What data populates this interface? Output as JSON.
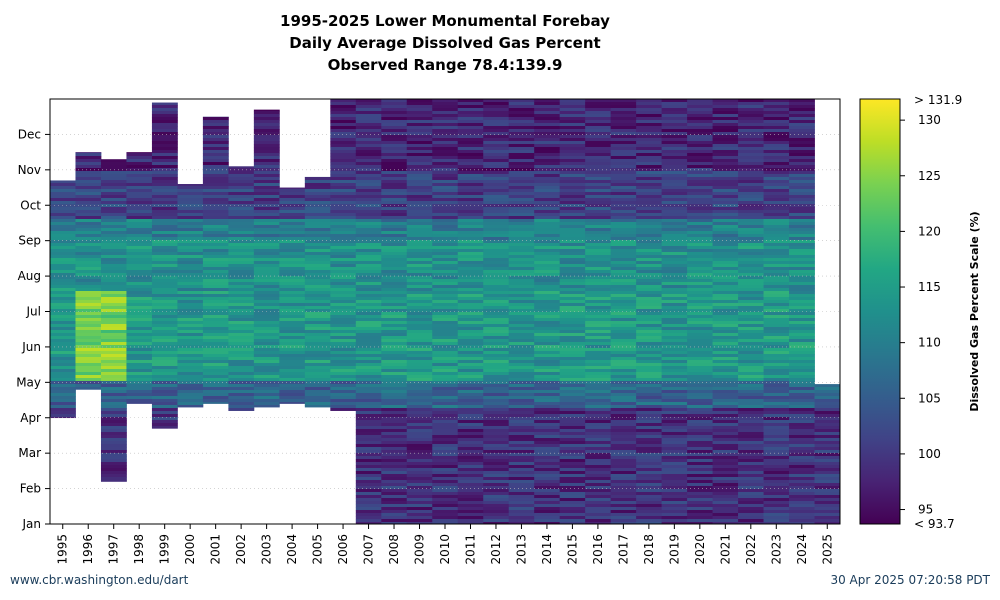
{
  "chart_data": {
    "type": "heatmap",
    "title_lines": [
      "1995-2025 Lower Monumental Forebay",
      "Daily Average Dissolved Gas Percent",
      "Observed Range 78.4:139.9"
    ],
    "x_tick_labels": [
      "1995",
      "1996",
      "1997",
      "1998",
      "1999",
      "2000",
      "2001",
      "2002",
      "2003",
      "2004",
      "2005",
      "2006",
      "2007",
      "2008",
      "2009",
      "2010",
      "2011",
      "2012",
      "2013",
      "2014",
      "2015",
      "2016",
      "2017",
      "2018",
      "2019",
      "2020",
      "2021",
      "2022",
      "2023",
      "2024",
      "2025"
    ],
    "y_tick_labels": [
      "Jan",
      "Feb",
      "Mar",
      "Apr",
      "May",
      "Jun",
      "Jul",
      "Aug",
      "Sep",
      "Oct",
      "Nov",
      "Dec"
    ],
    "colorbar": {
      "label": "Dissolved Gas Percent Scale (%)",
      "min": 93.7,
      "max": 131.9,
      "ticks": [
        95,
        100,
        105,
        110,
        115,
        120,
        125,
        130
      ],
      "tick_labels": [
        "95",
        "100",
        "105",
        "110",
        "115",
        "120",
        "125",
        "130"
      ],
      "min_label": "< 93.7",
      "max_label": "> 131.9",
      "colormap": "viridis"
    },
    "coverage_months": [
      {
        "year": "1995",
        "start": 3.0,
        "end": 9.7
      },
      {
        "year": "1996",
        "start": 3.8,
        "end": 10.5
      },
      {
        "year": "1997",
        "start": 1.2,
        "end": 10.3
      },
      {
        "year": "1998",
        "start": 3.4,
        "end": 10.5
      },
      {
        "year": "1999",
        "start": 2.7,
        "end": 11.9
      },
      {
        "year": "2000",
        "start": 3.3,
        "end": 9.6
      },
      {
        "year": "2001",
        "start": 3.4,
        "end": 11.5
      },
      {
        "year": "2002",
        "start": 3.2,
        "end": 10.1
      },
      {
        "year": "2003",
        "start": 3.3,
        "end": 11.7
      },
      {
        "year": "2004",
        "start": 3.4,
        "end": 9.5
      },
      {
        "year": "2005",
        "start": 3.3,
        "end": 9.8
      },
      {
        "year": "2006",
        "start": 3.2,
        "end": 12.0
      },
      {
        "year": "2007",
        "start": 0.0,
        "end": 12.0
      },
      {
        "year": "2008",
        "start": 0.0,
        "end": 12.0
      },
      {
        "year": "2009",
        "start": 0.0,
        "end": 12.0
      },
      {
        "year": "2010",
        "start": 0.0,
        "end": 12.0
      },
      {
        "year": "2011",
        "start": 0.0,
        "end": 12.0
      },
      {
        "year": "2012",
        "start": 0.0,
        "end": 12.0
      },
      {
        "year": "2013",
        "start": 0.0,
        "end": 12.0
      },
      {
        "year": "2014",
        "start": 0.0,
        "end": 12.0
      },
      {
        "year": "2015",
        "start": 0.0,
        "end": 12.0
      },
      {
        "year": "2016",
        "start": 0.0,
        "end": 12.0
      },
      {
        "year": "2017",
        "start": 0.0,
        "end": 12.0
      },
      {
        "year": "2018",
        "start": 0.0,
        "end": 12.0
      },
      {
        "year": "2019",
        "start": 0.0,
        "end": 12.0
      },
      {
        "year": "2020",
        "start": 0.0,
        "end": 12.0
      },
      {
        "year": "2021",
        "start": 0.0,
        "end": 12.0
      },
      {
        "year": "2022",
        "start": 0.0,
        "end": 12.0
      },
      {
        "year": "2023",
        "start": 0.0,
        "end": 12.0
      },
      {
        "year": "2024",
        "start": 0.0,
        "end": 12.0
      },
      {
        "year": "2025",
        "start": 0.0,
        "end": 3.95
      }
    ],
    "grid": true
  },
  "footer": {
    "left": "www.cbr.washington.edu/dart",
    "right": "30 Apr 2025 07:20:58 PDT"
  }
}
